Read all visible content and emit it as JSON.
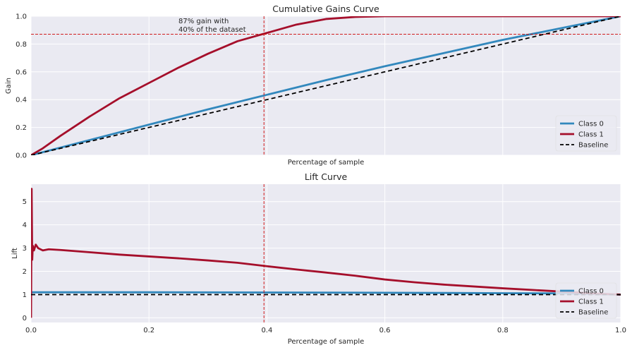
{
  "colors": {
    "class0": "#3288bd",
    "class1": "#a50f2b",
    "baseline": "#000000",
    "reference": "#cc0000",
    "panel_bg": "#eaeaf2",
    "grid": "#ffffff"
  },
  "chart_data": [
    {
      "type": "line",
      "title": "Cumulative Gains Curve",
      "xlabel": "Percentage of sample",
      "ylabel": "Gain",
      "xlim": [
        0,
        1
      ],
      "ylim": [
        0,
        1
      ],
      "grid": true,
      "show_xticks": false,
      "yticks": [
        "0.0",
        "0.2",
        "0.4",
        "0.6",
        "0.8",
        "1.0"
      ],
      "legend_position": "lower-right",
      "reference_lines": {
        "x": 0.395,
        "y": 0.87
      },
      "annotation": [
        "87% gain with",
        "40% of the dataset"
      ],
      "annotation_at": {
        "x": 0.25,
        "y": 0.95
      },
      "series": [
        {
          "name": "Class 0",
          "color": "class0",
          "dash": false,
          "x": [
            0,
            0.1,
            0.2,
            0.3,
            0.4,
            0.5,
            0.6,
            0.7,
            0.8,
            0.9,
            1.0
          ],
          "y": [
            0,
            0.11,
            0.22,
            0.33,
            0.435,
            0.54,
            0.64,
            0.735,
            0.83,
            0.915,
            1.0
          ]
        },
        {
          "name": "Class 1",
          "color": "class1",
          "dash": false,
          "x": [
            0,
            0.02,
            0.05,
            0.1,
            0.15,
            0.2,
            0.25,
            0.3,
            0.35,
            0.4,
            0.45,
            0.5,
            0.55,
            0.6,
            0.7,
            0.8,
            0.9,
            1.0
          ],
          "y": [
            0,
            0.05,
            0.14,
            0.28,
            0.41,
            0.52,
            0.63,
            0.73,
            0.82,
            0.88,
            0.94,
            0.98,
            0.995,
            1.0,
            1.0,
            1.0,
            1.0,
            1.0
          ]
        },
        {
          "name": "Baseline",
          "color": "baseline",
          "dash": true,
          "x": [
            0,
            1
          ],
          "y": [
            0,
            1
          ]
        }
      ]
    },
    {
      "type": "line",
      "title": "Lift Curve",
      "xlabel": "Percentage of sample",
      "ylabel": "Lift",
      "xlim": [
        0,
        1
      ],
      "ylim": [
        -0.2,
        5.75
      ],
      "grid": true,
      "xticks": [
        "0.0",
        "0.2",
        "0.4",
        "0.6",
        "0.8",
        "1.0"
      ],
      "yticks": [
        "0",
        "1",
        "2",
        "3",
        "4",
        "5"
      ],
      "legend_position": "lower-right",
      "reference_lines": {
        "x": 0.395
      },
      "series": [
        {
          "name": "Class 0",
          "color": "class0",
          "dash": false,
          "x": [
            0,
            0.2,
            0.4,
            0.6,
            0.8,
            0.9,
            1.0
          ],
          "y": [
            1.1,
            1.1,
            1.09,
            1.08,
            1.06,
            1.05,
            1.0
          ]
        },
        {
          "name": "Class 1",
          "color": "class1",
          "dash": false,
          "x": [
            0,
            0.001,
            0.002,
            0.003,
            0.005,
            0.008,
            0.012,
            0.02,
            0.03,
            0.05,
            0.1,
            0.15,
            0.2,
            0.25,
            0.3,
            0.35,
            0.4,
            0.45,
            0.5,
            0.55,
            0.6,
            0.65,
            0.7,
            0.75,
            0.8,
            0.85,
            0.9,
            0.95,
            1.0
          ],
          "y": [
            0,
            5.55,
            2.5,
            3.1,
            2.9,
            3.15,
            3.0,
            2.9,
            2.95,
            2.92,
            2.82,
            2.72,
            2.64,
            2.56,
            2.47,
            2.37,
            2.22,
            2.08,
            1.95,
            1.81,
            1.65,
            1.53,
            1.43,
            1.35,
            1.27,
            1.2,
            1.13,
            1.05,
            1.0
          ]
        },
        {
          "name": "Baseline",
          "color": "baseline",
          "dash": true,
          "x": [
            0,
            1
          ],
          "y": [
            1,
            1
          ]
        }
      ]
    }
  ]
}
